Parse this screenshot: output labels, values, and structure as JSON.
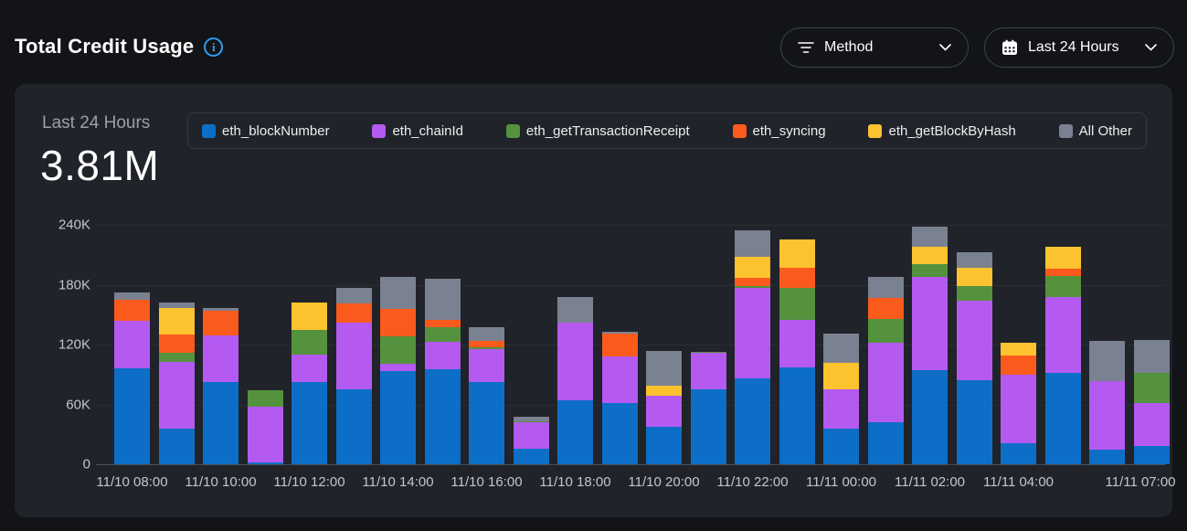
{
  "header": {
    "title": "Total Credit Usage",
    "filters": {
      "method_label": "Method",
      "range_label": "Last 24 Hours"
    }
  },
  "card": {
    "period_label": "Last 24 Hours",
    "total_value": "3.81M"
  },
  "icons": {
    "info": "info-circle-icon",
    "method": "filter-lines-icon",
    "range": "calendar-icon",
    "chevron": "chevron-down-icon"
  },
  "colors": {
    "page_background": "#131418",
    "card_background": "#202329",
    "accent_info": "#2d9cf2",
    "axis_text": "#c2c6cd",
    "gridline": "#2b2e34"
  },
  "chart_data": {
    "type": "bar",
    "stacked": true,
    "title": "Total Credit Usage",
    "period": "Last 24 Hours",
    "total_label": "3.81M",
    "value_unit": "K credits",
    "grid": "horizontal",
    "legend_position": "top",
    "ylim": [
      0,
      240
    ],
    "y_ticks": [
      {
        "label": "0",
        "value": 0
      },
      {
        "label": "60K",
        "value": 60
      },
      {
        "label": "120K",
        "value": 120
      },
      {
        "label": "180K",
        "value": 180
      },
      {
        "label": "240K",
        "value": 240
      }
    ],
    "categories": [
      "11/10 08:00",
      "11/10 09:00",
      "11/10 10:00",
      "11/10 11:00",
      "11/10 12:00",
      "11/10 13:00",
      "11/10 14:00",
      "11/10 15:00",
      "11/10 16:00",
      "11/10 17:00",
      "11/10 18:00",
      "11/10 19:00",
      "11/10 20:00",
      "11/10 21:00",
      "11/10 22:00",
      "11/10 23:00",
      "11/11 00:00",
      "11/11 01:00",
      "11/11 02:00",
      "11/11 03:00",
      "11/11 04:00",
      "11/11 05:00",
      "11/11 06:00",
      "11/11 07:00"
    ],
    "x_tick_labels": [
      "11/10 08:00",
      "11/10 10:00",
      "11/10 12:00",
      "11/10 14:00",
      "11/10 16:00",
      "11/10 18:00",
      "11/10 20:00",
      "11/10 22:00",
      "11/11 00:00",
      "11/11 02:00",
      "11/11 04:00",
      "11/11 07:00"
    ],
    "x_tick_category_indexes": [
      0,
      2,
      4,
      6,
      8,
      10,
      12,
      14,
      16,
      18,
      20,
      23
    ],
    "series": [
      {
        "name": "eth_blockNumber",
        "color": "#0c6ec6",
        "values": [
          96,
          36,
          82,
          2,
          82,
          75,
          93,
          95,
          82,
          16,
          64,
          61,
          38,
          75,
          86,
          97,
          36,
          42,
          94,
          84,
          21,
          92,
          15,
          18
        ]
      },
      {
        "name": "eth_chainId",
        "color": "#b45af0",
        "values": [
          48,
          67,
          47,
          56,
          28,
          67,
          8,
          28,
          33,
          26,
          78,
          47,
          31,
          37,
          91,
          48,
          39,
          80,
          94,
          80,
          69,
          76,
          68,
          43
        ]
      },
      {
        "name": "eth_getTransactionReceipt",
        "color": "#54923d",
        "values": [
          0,
          9,
          0,
          16,
          25,
          0,
          27,
          14,
          2,
          1,
          0,
          0,
          0,
          1,
          2,
          32,
          0,
          24,
          13,
          15,
          0,
          21,
          0,
          31
        ]
      },
      {
        "name": "eth_syncing",
        "color": "#fb5a1d",
        "values": [
          21,
          18,
          25,
          0,
          0,
          19,
          28,
          8,
          7,
          0,
          0,
          23,
          0,
          0,
          8,
          20,
          0,
          21,
          0,
          0,
          19,
          7,
          0,
          0
        ]
      },
      {
        "name": "eth_getBlockByHash",
        "color": "#fcc22f",
        "values": [
          0,
          27,
          0,
          0,
          27,
          0,
          0,
          0,
          0,
          0,
          0,
          0,
          10,
          0,
          21,
          28,
          27,
          0,
          17,
          18,
          13,
          22,
          0,
          0
        ]
      },
      {
        "name": "All Other",
        "color": "#7a8191",
        "values": [
          7,
          5,
          3,
          0,
          0,
          16,
          32,
          41,
          13,
          5,
          26,
          2,
          35,
          0,
          27,
          0,
          29,
          21,
          20,
          16,
          0,
          0,
          41,
          33
        ]
      }
    ]
  }
}
